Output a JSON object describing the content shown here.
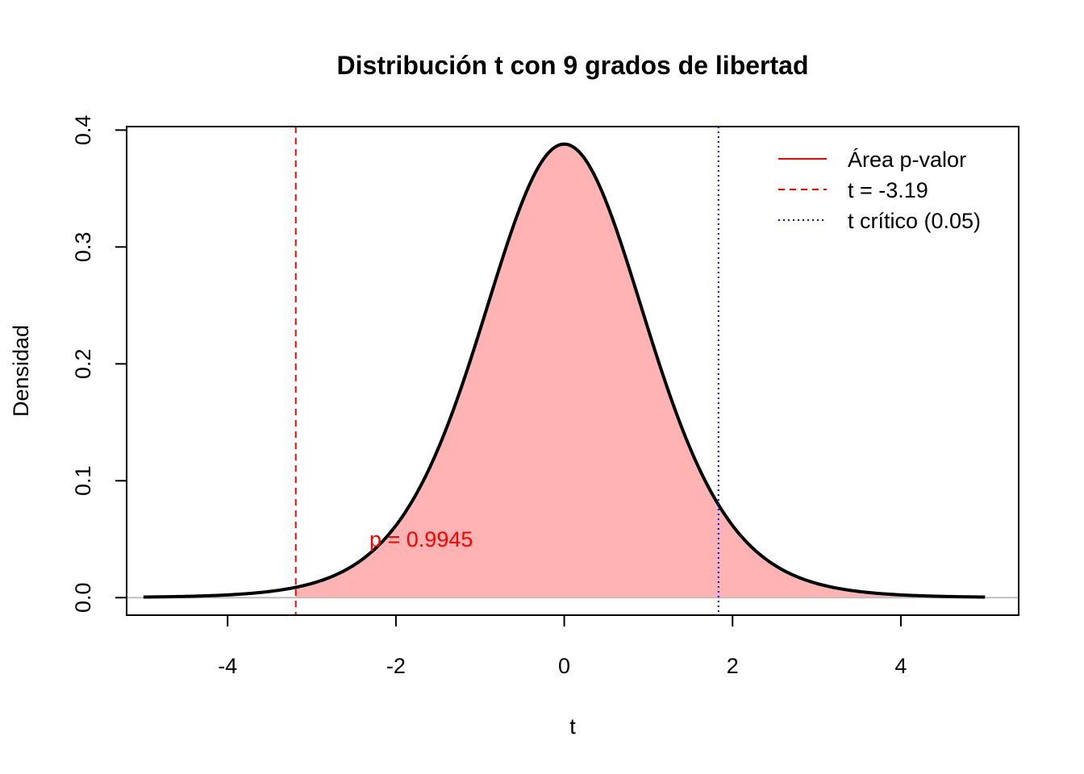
{
  "chart_data": {
    "type": "area",
    "title": "Distribución t con 9 grados de libertad",
    "xlabel": "t",
    "ylabel": "Densidad",
    "df": 9,
    "xlim": [
      -5.2,
      5.4
    ],
    "ylim": [
      -0.015,
      0.403
    ],
    "curve_range": [
      -5,
      5
    ],
    "x_ticks": [
      -4,
      -2,
      0,
      2,
      4
    ],
    "y_ticks": [
      0.0,
      0.1,
      0.2,
      0.3,
      0.4
    ],
    "x_tick_labels": [
      "-4",
      "-2",
      "0",
      "2",
      "4"
    ],
    "y_tick_labels": [
      "0.0",
      "0.1",
      "0.2",
      "0.3",
      "0.4"
    ],
    "shade_from": -3.19,
    "t_observed": -3.19,
    "t_critical": 1.833,
    "annotation": {
      "text": "p = 0.9945",
      "x": -1.7,
      "y": 0.05
    },
    "legend": {
      "position": "top-right",
      "entries": [
        {
          "label": "Área p-valor",
          "style": "solid",
          "color": "#ff0000"
        },
        {
          "label": "t = -3.19",
          "style": "dashed",
          "color": "#ff0000"
        },
        {
          "label": "t crítico (0.05)",
          "style": "dotted",
          "color": "#0000ff"
        }
      ]
    },
    "colors": {
      "fill": "#ffb3b3",
      "curve": "#000000",
      "observed_line": "#ff0000",
      "critical_line": "#0000ff",
      "baseline": "#bebebe",
      "annotation": "#ff0000"
    }
  }
}
